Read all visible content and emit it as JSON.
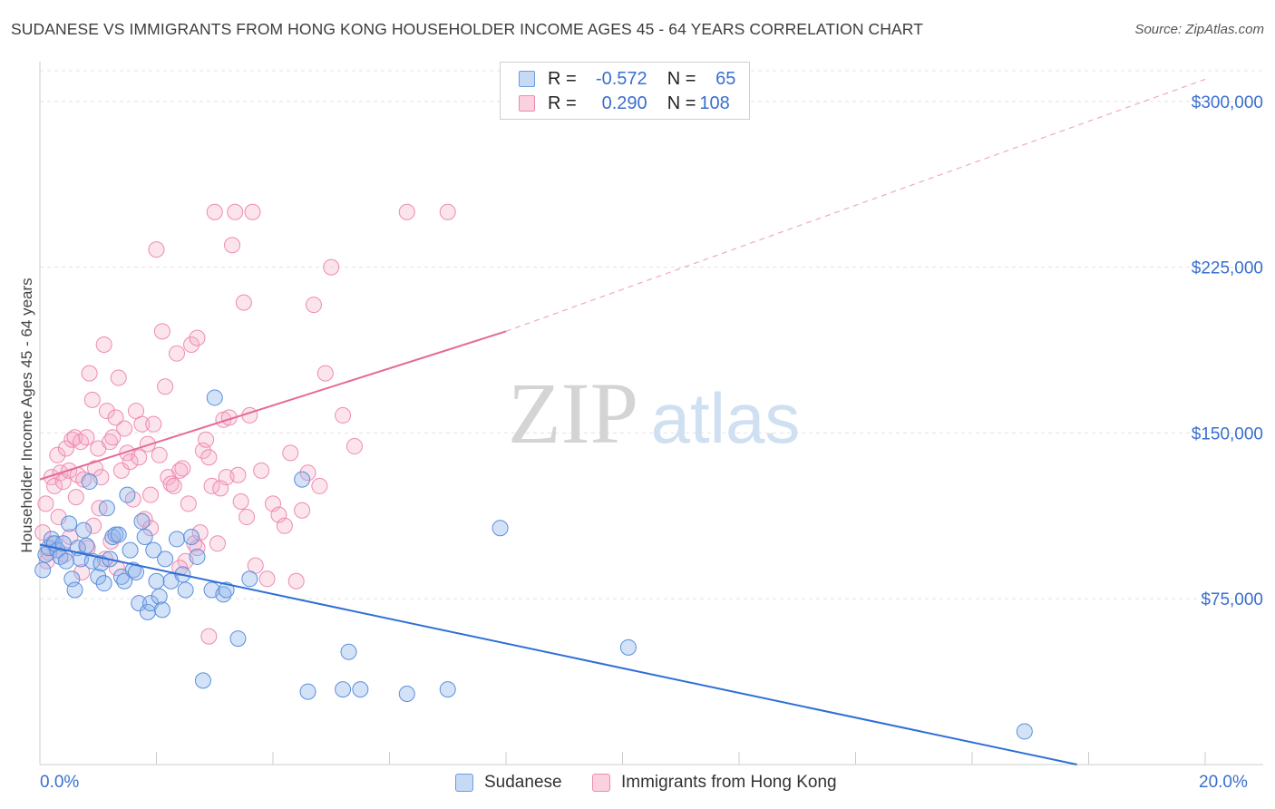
{
  "title": "SUDANESE VS IMMIGRANTS FROM HONG KONG HOUSEHOLDER INCOME AGES 45 - 64 YEARS CORRELATION CHART",
  "source": "Source: ZipAtlas.com",
  "watermark": {
    "zip": "ZIP",
    "atlas": "atlas"
  },
  "legend": {
    "r_label": "R =",
    "n_label": "N =",
    "rows": [
      {
        "r": "-0.572",
        "n": "65",
        "color": "#6a9de0"
      },
      {
        "r": "0.290",
        "n": "108",
        "color": "#f08ab0"
      }
    ]
  },
  "chart_data": {
    "type": "scatter",
    "title": "SUDANESE VS IMMIGRANTS FROM HONG KONG HOUSEHOLDER INCOME AGES 45 - 64 YEARS CORRELATION CHART",
    "xlabel": "",
    "ylabel": "Householder Income Ages 45 - 64 years",
    "xlim": [
      0,
      20
    ],
    "ylim": [
      0,
      318000
    ],
    "x_tick_labels": [
      "0.0%",
      "20.0%"
    ],
    "y_ticks": [
      75000,
      150000,
      225000,
      300000
    ],
    "y_tick_labels": [
      "$75,000",
      "$150,000",
      "$225,000",
      "$300,000"
    ],
    "grid": true,
    "series": [
      {
        "name": "Sudanese",
        "color": "#6a9de0",
        "r": -0.572,
        "n": 65,
        "trend": {
          "x0": 0,
          "y0": 99500,
          "x1": 17.8,
          "y1": 0,
          "dashed_to": null
        },
        "points": [
          [
            0.1,
            95000
          ],
          [
            0.15,
            98000
          ],
          [
            0.2,
            102000
          ],
          [
            0.25,
            100000
          ],
          [
            0.3,
            97000
          ],
          [
            0.35,
            94000
          ],
          [
            0.4,
            100000
          ],
          [
            0.45,
            92000
          ],
          [
            0.5,
            109000
          ],
          [
            0.55,
            84000
          ],
          [
            0.6,
            79000
          ],
          [
            0.65,
            98000
          ],
          [
            0.7,
            93000
          ],
          [
            0.75,
            106000
          ],
          [
            0.8,
            99000
          ],
          [
            0.85,
            128000
          ],
          [
            0.9,
            92000
          ],
          [
            1.0,
            85000
          ],
          [
            1.05,
            91000
          ],
          [
            1.1,
            82000
          ],
          [
            1.15,
            116000
          ],
          [
            1.2,
            93000
          ],
          [
            1.25,
            103000
          ],
          [
            1.3,
            104000
          ],
          [
            1.35,
            104000
          ],
          [
            1.4,
            85000
          ],
          [
            1.45,
            83000
          ],
          [
            1.5,
            122000
          ],
          [
            1.55,
            97000
          ],
          [
            1.6,
            88000
          ],
          [
            1.65,
            87000
          ],
          [
            1.7,
            73000
          ],
          [
            1.75,
            110000
          ],
          [
            1.8,
            103000
          ],
          [
            1.85,
            69000
          ],
          [
            1.9,
            73000
          ],
          [
            1.95,
            97000
          ],
          [
            2.0,
            83000
          ],
          [
            2.05,
            76000
          ],
          [
            2.1,
            70000
          ],
          [
            2.15,
            93000
          ],
          [
            2.25,
            83000
          ],
          [
            2.35,
            102000
          ],
          [
            2.45,
            86000
          ],
          [
            2.5,
            79000
          ],
          [
            2.6,
            103000
          ],
          [
            2.7,
            94000
          ],
          [
            2.8,
            38000
          ],
          [
            2.95,
            79000
          ],
          [
            3.0,
            166000
          ],
          [
            3.15,
            77000
          ],
          [
            3.2,
            79000
          ],
          [
            3.4,
            57000
          ],
          [
            3.6,
            84000
          ],
          [
            4.5,
            129000
          ],
          [
            4.6,
            33000
          ],
          [
            5.2,
            34000
          ],
          [
            5.3,
            51000
          ],
          [
            5.5,
            34000
          ],
          [
            6.3,
            32000
          ],
          [
            7.0,
            34000
          ],
          [
            7.9,
            107000
          ],
          [
            10.1,
            53000
          ],
          [
            16.9,
            15000
          ],
          [
            0.05,
            88000
          ]
        ]
      },
      {
        "name": "Immigrants from Hong Kong",
        "color": "#f08ab0",
        "r": 0.29,
        "n": 108,
        "trend": {
          "x0": 0,
          "y0": 129000,
          "x1": 8.0,
          "y1": 196000,
          "dashed_to": [
            20,
            310000
          ]
        },
        "points": [
          [
            0.05,
            105000
          ],
          [
            0.1,
            118000
          ],
          [
            0.15,
            96000
          ],
          [
            0.2,
            130000
          ],
          [
            0.25,
            126000
          ],
          [
            0.3,
            140000
          ],
          [
            0.35,
            132000
          ],
          [
            0.4,
            128000
          ],
          [
            0.45,
            143000
          ],
          [
            0.5,
            133000
          ],
          [
            0.55,
            147000
          ],
          [
            0.6,
            148000
          ],
          [
            0.65,
            131000
          ],
          [
            0.7,
            146000
          ],
          [
            0.75,
            129000
          ],
          [
            0.8,
            148000
          ],
          [
            0.85,
            177000
          ],
          [
            0.9,
            165000
          ],
          [
            0.95,
            134000
          ],
          [
            1.0,
            143000
          ],
          [
            1.05,
            130000
          ],
          [
            1.1,
            190000
          ],
          [
            1.15,
            160000
          ],
          [
            1.2,
            146000
          ],
          [
            1.25,
            148000
          ],
          [
            1.3,
            157000
          ],
          [
            1.35,
            175000
          ],
          [
            1.4,
            133000
          ],
          [
            1.45,
            152000
          ],
          [
            1.5,
            141000
          ],
          [
            1.55,
            137000
          ],
          [
            1.6,
            120000
          ],
          [
            1.65,
            160000
          ],
          [
            1.7,
            139000
          ],
          [
            1.75,
            154000
          ],
          [
            1.8,
            111000
          ],
          [
            1.85,
            145000
          ],
          [
            1.9,
            107000
          ],
          [
            1.95,
            154000
          ],
          [
            2.0,
            233000
          ],
          [
            2.05,
            140000
          ],
          [
            2.1,
            196000
          ],
          [
            2.15,
            171000
          ],
          [
            2.2,
            130000
          ],
          [
            2.25,
            127000
          ],
          [
            2.3,
            126000
          ],
          [
            2.35,
            186000
          ],
          [
            2.4,
            133000
          ],
          [
            2.45,
            134000
          ],
          [
            2.5,
            92000
          ],
          [
            2.55,
            118000
          ],
          [
            2.6,
            190000
          ],
          [
            2.65,
            100000
          ],
          [
            2.7,
            193000
          ],
          [
            2.75,
            105000
          ],
          [
            2.8,
            142000
          ],
          [
            2.85,
            147000
          ],
          [
            2.9,
            139000
          ],
          [
            2.95,
            126000
          ],
          [
            3.0,
            250000
          ],
          [
            3.05,
            100000
          ],
          [
            3.1,
            125000
          ],
          [
            3.15,
            156000
          ],
          [
            3.2,
            130000
          ],
          [
            3.25,
            157000
          ],
          [
            3.3,
            235000
          ],
          [
            3.35,
            250000
          ],
          [
            3.4,
            131000
          ],
          [
            3.45,
            119000
          ],
          [
            3.5,
            209000
          ],
          [
            3.55,
            112000
          ],
          [
            3.6,
            158000
          ],
          [
            3.65,
            250000
          ],
          [
            3.7,
            90000
          ],
          [
            3.8,
            133000
          ],
          [
            3.9,
            84000
          ],
          [
            4.0,
            118000
          ],
          [
            4.1,
            113000
          ],
          [
            4.2,
            108000
          ],
          [
            4.3,
            141000
          ],
          [
            4.4,
            83000
          ],
          [
            4.5,
            115000
          ],
          [
            4.6,
            132000
          ],
          [
            4.7,
            208000
          ],
          [
            4.8,
            126000
          ],
          [
            4.9,
            177000
          ],
          [
            5.0,
            225000
          ],
          [
            5.2,
            158000
          ],
          [
            5.4,
            144000
          ],
          [
            6.3,
            250000
          ],
          [
            7.0,
            250000
          ],
          [
            0.12,
            92000
          ],
          [
            0.22,
            100000
          ],
          [
            0.32,
            112000
          ],
          [
            0.42,
            95000
          ],
          [
            0.52,
            103000
          ],
          [
            0.62,
            121000
          ],
          [
            0.72,
            87000
          ],
          [
            0.82,
            98000
          ],
          [
            0.92,
            108000
          ],
          [
            1.02,
            116000
          ],
          [
            1.12,
            93000
          ],
          [
            1.22,
            101000
          ],
          [
            1.32,
            89000
          ],
          [
            2.9,
            58000
          ],
          [
            2.4,
            89000
          ],
          [
            1.9,
            122000
          ],
          [
            2.7,
            98000
          ]
        ]
      }
    ]
  },
  "bottom_legend": [
    "Sudanese",
    "Immigrants from Hong Kong"
  ]
}
